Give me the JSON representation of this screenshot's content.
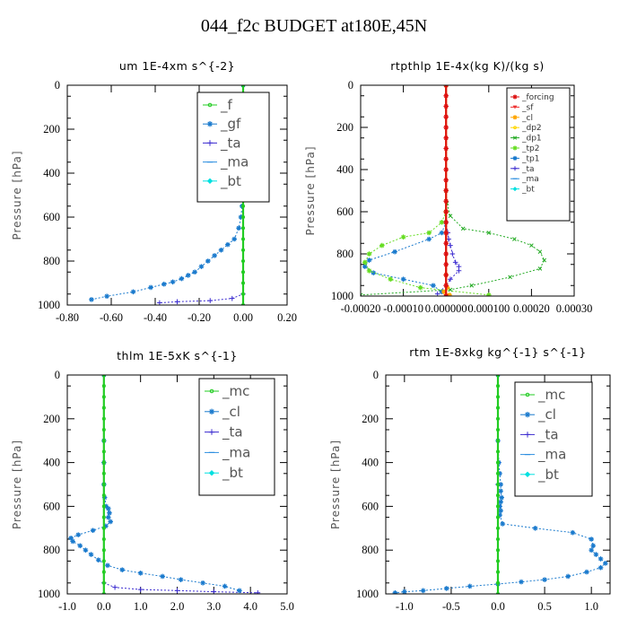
{
  "title": "044_f2c  BUDGET at180E,45N",
  "chart_data": [
    {
      "type": "line",
      "title": "um   1E-4xm  s^{-2}",
      "ylabel": "Pressure [hPa]",
      "xlim": [
        -0.8,
        0.2
      ],
      "ylim": [
        1000,
        0
      ],
      "xticks": [
        -0.8,
        -0.6,
        -0.4,
        -0.2,
        0.0,
        0.2
      ],
      "xtick_labels": [
        "-0.80",
        "-0.60",
        "-0.40",
        "-0.20",
        "0.00",
        "0.20"
      ],
      "yticks": [
        0,
        200,
        400,
        600,
        800,
        1000
      ],
      "legend": "top-right",
      "series": [
        {
          "name": "_f",
          "color": "#22cc22",
          "marker": "o",
          "x": [
            0,
            0,
            0,
            0,
            0,
            0,
            0,
            0,
            0,
            0,
            0,
            0,
            0,
            0,
            0,
            0,
            0,
            0,
            0,
            0,
            0
          ],
          "y": [
            0,
            50,
            100,
            150,
            200,
            250,
            300,
            350,
            400,
            450,
            500,
            550,
            600,
            650,
            700,
            750,
            800,
            850,
            900,
            950,
            1000
          ]
        },
        {
          "name": "_gf",
          "color": "#1a7acd",
          "marker": "*",
          "x": [
            0,
            0,
            0,
            0,
            0,
            0,
            0,
            0,
            0,
            0,
            -0.002,
            -0.005,
            -0.01,
            -0.02,
            -0.04,
            -0.07,
            -0.1,
            -0.13,
            -0.16,
            -0.19,
            -0.22,
            -0.25,
            -0.28,
            -0.32,
            -0.36,
            -0.42,
            -0.5,
            -0.62,
            -0.69
          ],
          "y": [
            0,
            50,
            100,
            150,
            200,
            250,
            300,
            350,
            400,
            450,
            500,
            550,
            600,
            650,
            700,
            725,
            750,
            775,
            800,
            825,
            850,
            865,
            880,
            895,
            905,
            920,
            940,
            960,
            975
          ]
        },
        {
          "name": "_ta",
          "color": "#3b2bd0",
          "marker": "+",
          "x": [
            0,
            0,
            0,
            -0.05,
            -0.15,
            -0.3,
            -0.38
          ],
          "y": [
            0,
            500,
            950,
            970,
            980,
            985,
            990
          ]
        },
        {
          "name": "_ma",
          "color": "#2d8fe0",
          "marker": "-",
          "x": [
            0,
            0,
            0
          ],
          "y": [
            0,
            500,
            1000
          ]
        },
        {
          "name": "_bt",
          "color": "#00e0e0",
          "marker": "D",
          "x": [
            0,
            0,
            0
          ],
          "y": [
            0,
            500,
            1000
          ]
        }
      ]
    },
    {
      "type": "line",
      "title": "rtpthlp   1E-4x(kg K)/(kg s)",
      "ylabel": "Pressure [hPa]",
      "xlim": [
        -0.0002,
        0.0003
      ],
      "ylim": [
        1000,
        0
      ],
      "xticks": [
        -0.0002,
        -0.0001,
        0,
        0.0001,
        0.0002,
        0.0003
      ],
      "xtick_labels": [
        "-0.00020",
        "-0.00010",
        "0.000000",
        "0.000100",
        "0.00020",
        "0.00030"
      ],
      "yticks": [
        0,
        200,
        400,
        600,
        800,
        1000
      ],
      "legend": "top-right",
      "series": [
        {
          "name": "_forcing",
          "color": "#dd1111",
          "marker": "*",
          "x": [
            0,
            0,
            0,
            0,
            0,
            0,
            0,
            0,
            0,
            0,
            0,
            0,
            0,
            0,
            0,
            0,
            0,
            0,
            0,
            0,
            0
          ],
          "y": [
            0,
            50,
            100,
            150,
            200,
            250,
            300,
            350,
            400,
            450,
            500,
            550,
            600,
            650,
            700,
            750,
            800,
            850,
            900,
            950,
            1000
          ]
        },
        {
          "name": "_sf",
          "color": "#ee3333",
          "marker": "v",
          "x": [
            0,
            0,
            0
          ],
          "y": [
            0,
            500,
            1000
          ]
        },
        {
          "name": "_cl",
          "color": "#ffa500",
          "marker": "*",
          "x": [
            0,
            0,
            0,
            3e-06,
            -5e-06,
            8e-06
          ],
          "y": [
            0,
            600,
            900,
            960,
            980,
            995
          ]
        },
        {
          "name": "_dp2",
          "color": "#ffd700",
          "marker": "o",
          "x": [
            0,
            0,
            0
          ],
          "y": [
            0,
            500,
            1000
          ]
        },
        {
          "name": "_dp1",
          "color": "#22aa22",
          "marker": "x",
          "x": [
            0,
            0,
            2e-06,
            1e-05,
            4e-05,
            0.0001,
            0.00016,
            0.0002,
            0.00022,
            0.00023,
            0.00022,
            0.00015,
            6e-05,
            1e-05,
            -0.0002
          ],
          "y": [
            0,
            500,
            560,
            620,
            680,
            700,
            730,
            760,
            790,
            830,
            870,
            910,
            950,
            970,
            995
          ]
        },
        {
          "name": "_tp2",
          "color": "#66dd22",
          "marker": "*",
          "x": [
            0,
            0,
            -1e-05,
            -4e-05,
            -0.0001,
            -0.00015,
            -0.00018,
            -0.00019,
            -0.00018,
            -0.00013,
            -6e-05,
            0.0001
          ],
          "y": [
            0,
            600,
            650,
            700,
            720,
            760,
            800,
            840,
            880,
            920,
            960,
            995
          ]
        },
        {
          "name": "_tp1",
          "color": "#1a7acd",
          "marker": "*",
          "x": [
            0,
            0,
            -1e-05,
            -4e-05,
            -0.00012,
            -0.00018,
            -0.00019,
            -0.00017,
            -0.0001,
            -3e-05,
            -1e-05
          ],
          "y": [
            0,
            650,
            700,
            730,
            790,
            830,
            860,
            890,
            920,
            950,
            980
          ]
        },
        {
          "name": "_ta",
          "color": "#3b2bd0",
          "marker": "+",
          "x": [
            0,
            0,
            4e-06,
            6e-06,
            1e-05,
            1.5e-05,
            2.2e-05,
            3e-05,
            3e-05,
            1e-05,
            0,
            -2e-05
          ],
          "y": [
            0,
            650,
            700,
            730,
            760,
            800,
            840,
            860,
            880,
            920,
            950,
            990
          ]
        },
        {
          "name": "_ma",
          "color": "#2d8fe0",
          "marker": "-",
          "x": [
            0,
            0,
            0
          ],
          "y": [
            0,
            500,
            1000
          ]
        },
        {
          "name": "_bt",
          "color": "#00e0e0",
          "marker": "D",
          "x": [
            0,
            0,
            0
          ],
          "y": [
            0,
            500,
            1000
          ]
        }
      ]
    },
    {
      "type": "line",
      "title": "thlm   1E-5xK  s^{-1}",
      "ylabel": "Pressure [hPa]",
      "xlim": [
        -1,
        5
      ],
      "ylim": [
        1000,
        0
      ],
      "xticks": [
        -1,
        0,
        1,
        2,
        3,
        4,
        5
      ],
      "xtick_labels": [
        "-1.0",
        "0.0",
        "1.0",
        "2.0",
        "3.0",
        "4.0",
        "5.0"
      ],
      "yticks": [
        0,
        200,
        400,
        600,
        800,
        1000
      ],
      "legend": "top-right",
      "series": [
        {
          "name": "_mc",
          "color": "#22cc22",
          "marker": "o",
          "x": [
            0,
            0,
            0,
            0,
            0,
            0,
            0,
            0,
            0,
            0,
            0,
            0,
            0,
            0,
            0,
            0,
            0,
            0,
            0,
            0,
            0
          ],
          "y": [
            0,
            50,
            100,
            150,
            200,
            250,
            300,
            350,
            400,
            450,
            500,
            550,
            600,
            650,
            700,
            750,
            800,
            850,
            900,
            950,
            1000
          ]
        },
        {
          "name": "_cl",
          "color": "#1a7acd",
          "marker": "*",
          "x": [
            0,
            0,
            0,
            0,
            0.02,
            0.06,
            0.12,
            0.15,
            0.12,
            0.18,
            0.05,
            -0.3,
            -0.7,
            -0.9,
            -0.85,
            -0.65,
            -0.5,
            -0.35,
            -0.15,
            0.1,
            0.5,
            1.0,
            1.6,
            2.1,
            2.7,
            3.3,
            3.7
          ],
          "y": [
            0,
            300,
            400,
            500,
            560,
            600,
            610,
            630,
            650,
            670,
            690,
            710,
            730,
            745,
            760,
            780,
            800,
            820,
            845,
            870,
            890,
            905,
            920,
            935,
            950,
            965,
            985
          ]
        },
        {
          "name": "_ta",
          "color": "#3b2bd0",
          "marker": "+",
          "x": [
            0,
            0,
            0.3,
            1.0,
            2.0,
            3.0,
            4.2
          ],
          "y": [
            0,
            950,
            970,
            980,
            985,
            990,
            995
          ]
        },
        {
          "name": "_ma",
          "color": "#2d8fe0",
          "marker": "-",
          "x": [
            0,
            0,
            0
          ],
          "y": [
            0,
            500,
            1000
          ]
        },
        {
          "name": "_bt",
          "color": "#00e0e0",
          "marker": "D",
          "x": [
            0,
            0,
            0
          ],
          "y": [
            0,
            500,
            1000
          ]
        }
      ]
    },
    {
      "type": "line",
      "title": "rtm   1E-8xkg  kg^{-1}  s^{-1}",
      "ylabel": "Pressure [hPa]",
      "xlim": [
        -1.2,
        1.2
      ],
      "ylim": [
        1000,
        0
      ],
      "xticks": [
        -1.0,
        -0.5,
        0.0,
        0.5,
        1.0
      ],
      "xtick_labels": [
        "-1.0",
        "-0.5",
        "0.0",
        "0.5",
        "1.0"
      ],
      "yticks": [
        0,
        200,
        400,
        600,
        800,
        1000
      ],
      "legend": "top-right",
      "series": [
        {
          "name": "_mc",
          "color": "#22cc22",
          "marker": "o",
          "x": [
            0,
            0,
            0,
            0,
            0,
            0,
            0,
            0,
            0,
            0,
            0,
            0,
            0,
            0,
            0,
            0,
            0,
            0,
            0,
            0,
            0
          ],
          "y": [
            0,
            50,
            100,
            150,
            200,
            250,
            300,
            350,
            400,
            450,
            500,
            550,
            600,
            650,
            700,
            750,
            800,
            850,
            900,
            950,
            1000
          ]
        },
        {
          "name": "_cl",
          "color": "#1a7acd",
          "marker": "*",
          "x": [
            0,
            0,
            0.01,
            0.02,
            0.03,
            0.03,
            0.04,
            0.03,
            0.02,
            0.03,
            0.02,
            0.05,
            0.4,
            0.8,
            1.0,
            1.02,
            1.0,
            1.05,
            1.1,
            1.15,
            1.1,
            0.95,
            0.75,
            0.5,
            0.25,
            0.0,
            -0.3,
            -0.55,
            -0.8,
            -1.0,
            -1.1
          ],
          "y": [
            0,
            300,
            400,
            450,
            500,
            530,
            560,
            580,
            600,
            620,
            640,
            680,
            700,
            720,
            750,
            780,
            800,
            820,
            840,
            860,
            880,
            900,
            920,
            935,
            945,
            955,
            965,
            975,
            985,
            990,
            995
          ]
        },
        {
          "name": "_ta",
          "color": "#3b2bd0",
          "marker": "+",
          "x": [
            0,
            0,
            0
          ],
          "y": [
            0,
            500,
            1000
          ]
        },
        {
          "name": "_ma",
          "color": "#2d8fe0",
          "marker": "-",
          "x": [
            0,
            0,
            0
          ],
          "y": [
            0,
            500,
            1000
          ]
        },
        {
          "name": "_bt",
          "color": "#00e0e0",
          "marker": "D",
          "x": [
            0,
            0,
            0
          ],
          "y": [
            0,
            500,
            1000
          ]
        }
      ]
    }
  ]
}
